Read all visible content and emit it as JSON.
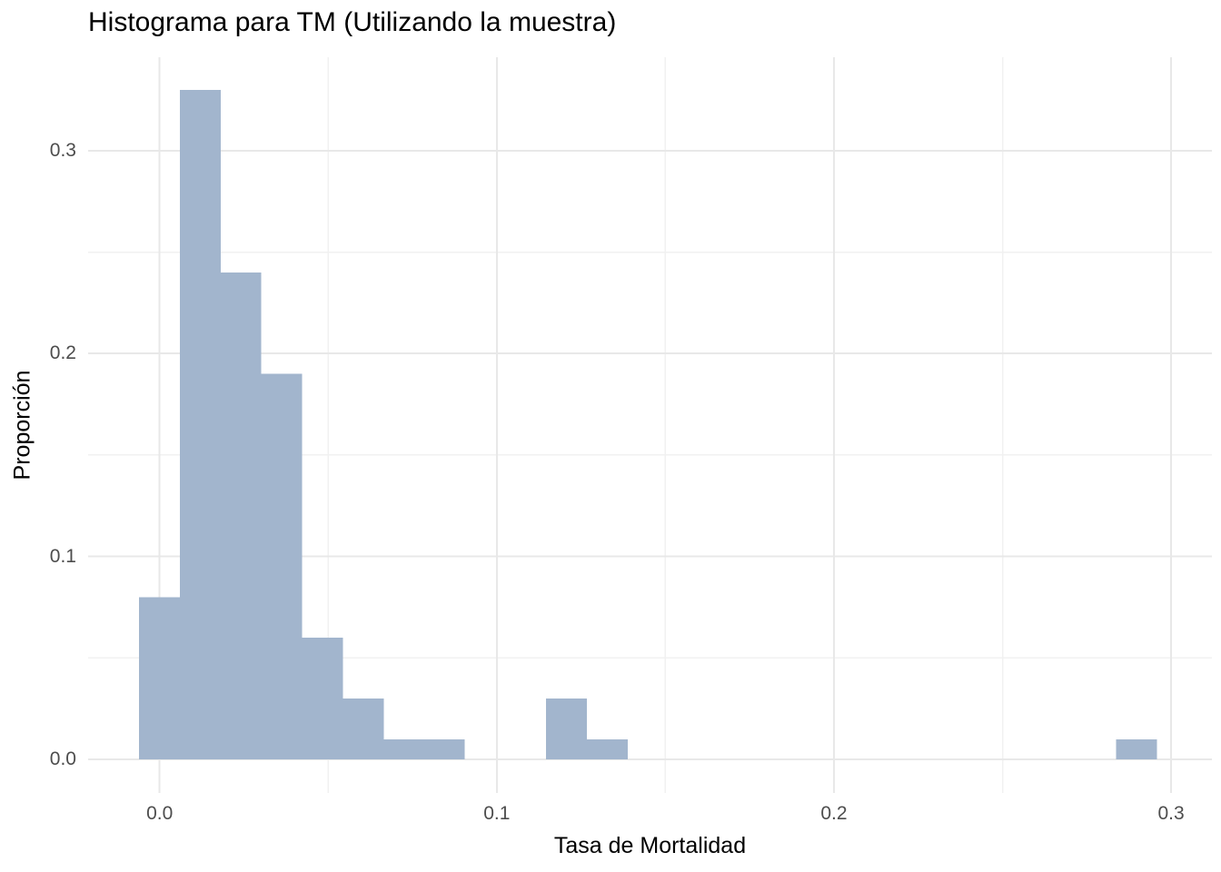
{
  "chart_data": {
    "type": "histogram",
    "title": "Histograma para TM (Utilizando la muestra)",
    "xlabel": "Tasa de Mortalidad",
    "ylabel": "Proporción",
    "binwidth": 0.0121,
    "bins": [
      {
        "center": 0.0,
        "height": 0.08
      },
      {
        "center": 0.0121,
        "height": 0.33
      },
      {
        "center": 0.0241,
        "height": 0.24
      },
      {
        "center": 0.0362,
        "height": 0.19
      },
      {
        "center": 0.0483,
        "height": 0.06
      },
      {
        "center": 0.0604,
        "height": 0.03
      },
      {
        "center": 0.0724,
        "height": 0.01
      },
      {
        "center": 0.0845,
        "height": 0.01
      },
      {
        "center": 0.1207,
        "height": 0.03
      },
      {
        "center": 0.1328,
        "height": 0.01
      },
      {
        "center": 0.2897,
        "height": 0.01
      }
    ],
    "x_tick_values": [
      0.0,
      0.1,
      0.2,
      0.3
    ],
    "x_tick_labels": [
      "0.0",
      "0.1",
      "0.2",
      "0.3"
    ],
    "y_tick_values": [
      0.0,
      0.1,
      0.2,
      0.3
    ],
    "y_tick_labels": [
      "0.0",
      "0.1",
      "0.2",
      "0.3"
    ],
    "x_minor_tick_values": [
      0.05,
      0.15,
      0.25
    ],
    "y_minor_tick_values": [
      0.05,
      0.15,
      0.25
    ],
    "x_range": [
      -0.0212,
      0.3121
    ],
    "y_range": [
      -0.0165,
      0.346
    ],
    "grid": "major+minor",
    "legend": "none",
    "colors": {
      "bar_fill": "#a2b5cd",
      "grid_major": "#e8e8e8",
      "grid_minor": "#f1f1f1",
      "tick_label": "#4d4d4d",
      "text": "#000000",
      "background": "#ffffff"
    }
  }
}
